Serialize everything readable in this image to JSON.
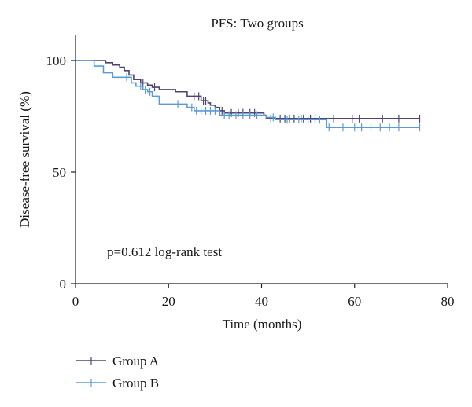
{
  "chart_data": {
    "type": "line",
    "title": "PFS: Two groups",
    "xlabel": "Time (months)",
    "ylabel": "Disease-free survival (%)",
    "xlim": [
      0,
      80
    ],
    "ylim": [
      0,
      100
    ],
    "xticks": [
      0,
      20,
      40,
      60,
      80
    ],
    "yticks": [
      0,
      50,
      100
    ],
    "annotation": "p=0.612 log-rank test",
    "legend_position": "bottom-left",
    "grid": false,
    "series": [
      {
        "name": "Group A",
        "color": "#4a4670",
        "steps": [
          [
            0,
            100
          ],
          [
            6.5,
            99
          ],
          [
            8,
            98
          ],
          [
            9.5,
            97
          ],
          [
            10.5,
            95.5
          ],
          [
            11.5,
            93.5
          ],
          [
            12.5,
            91.5
          ],
          [
            14,
            90
          ],
          [
            15.5,
            89
          ],
          [
            16.5,
            88
          ],
          [
            18,
            87
          ],
          [
            21.5,
            86
          ],
          [
            24,
            84
          ],
          [
            27,
            82
          ],
          [
            28.5,
            81
          ],
          [
            29,
            80
          ],
          [
            30,
            79
          ],
          [
            31,
            77.5
          ],
          [
            32,
            76.5
          ],
          [
            40.5,
            75.5
          ],
          [
            41,
            74
          ],
          [
            74,
            74
          ]
        ],
        "censor": [
          14.5,
          17,
          25.5,
          26.5,
          27.5,
          28,
          31.5,
          33.5,
          35,
          36,
          37.5,
          38.5,
          42,
          44,
          45,
          46,
          47,
          48.5,
          49,
          50.5,
          51.5,
          55.5,
          59.5,
          61,
          66,
          69.5,
          74
        ]
      },
      {
        "name": "Group B",
        "color": "#5b9bd5",
        "steps": [
          [
            0,
            100
          ],
          [
            4,
            97.5
          ],
          [
            6,
            94.5
          ],
          [
            8,
            92.5
          ],
          [
            12,
            90
          ],
          [
            13,
            88.5
          ],
          [
            14.5,
            87
          ],
          [
            15.5,
            86
          ],
          [
            16.5,
            84
          ],
          [
            18,
            80.5
          ],
          [
            24,
            79
          ],
          [
            25.5,
            77.5
          ],
          [
            31,
            75.5
          ],
          [
            41,
            74.5
          ],
          [
            43,
            73.5
          ],
          [
            54,
            70
          ],
          [
            74,
            70
          ]
        ],
        "censor": [
          11,
          14,
          15,
          16,
          17.5,
          22,
          25,
          26,
          27,
          28,
          29,
          30,
          32,
          33,
          34.5,
          36,
          37.5,
          39,
          42.5,
          45.5,
          48,
          50,
          52.5,
          54.5,
          57.5,
          60,
          61.5,
          63.5,
          65.5,
          67.5,
          69.5,
          74
        ]
      }
    ]
  }
}
